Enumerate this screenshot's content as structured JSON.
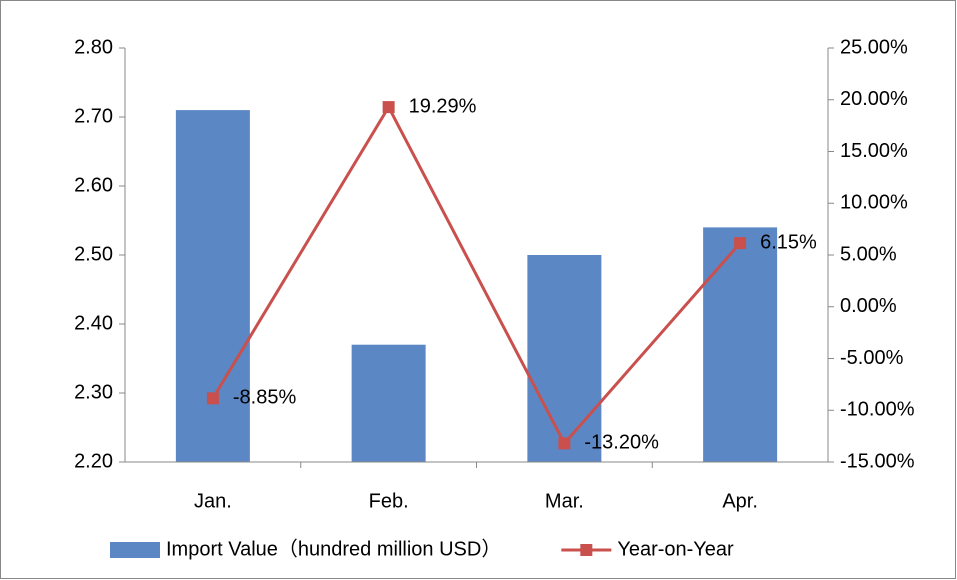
{
  "chart_data": {
    "type": "bar",
    "categories": [
      "Jan.",
      "Feb.",
      "Mar.",
      "Apr."
    ],
    "series": [
      {
        "name": "Import Value（hundred million USD）",
        "type": "bar",
        "color": "#5b87c5",
        "values": [
          2.71,
          2.37,
          2.5,
          2.54
        ]
      },
      {
        "name": "Year-on-Year",
        "type": "line",
        "axis": "y2",
        "color": "#c9504d",
        "values": [
          -8.85,
          19.29,
          -13.2,
          6.15
        ],
        "value_labels": [
          "-8.85%",
          "19.29%",
          "-13.20%",
          "6.15%"
        ]
      }
    ],
    "ylim": [
      2.2,
      2.8
    ],
    "yticks": [
      {
        "value": 2.2,
        "label": "2.20"
      },
      {
        "value": 2.3,
        "label": "2.30"
      },
      {
        "value": 2.4,
        "label": "2.40"
      },
      {
        "value": 2.5,
        "label": "2.50"
      },
      {
        "value": 2.6,
        "label": "2.60"
      },
      {
        "value": 2.7,
        "label": "2.70"
      },
      {
        "value": 2.8,
        "label": "2.80"
      }
    ],
    "y2lim": [
      -15,
      25
    ],
    "y2ticks": [
      {
        "value": -15,
        "label": "-15.00%"
      },
      {
        "value": -10,
        "label": "-10.00%"
      },
      {
        "value": -5,
        "label": "-5.00%"
      },
      {
        "value": 0,
        "label": "0.00%"
      },
      {
        "value": 5,
        "label": "5.00%"
      },
      {
        "value": 10,
        "label": "10.00%"
      },
      {
        "value": 15,
        "label": "15.00%"
      },
      {
        "value": 20,
        "label": "20.00%"
      },
      {
        "value": 25,
        "label": "25.00%"
      }
    ],
    "grid": false,
    "legend": "bottom"
  }
}
